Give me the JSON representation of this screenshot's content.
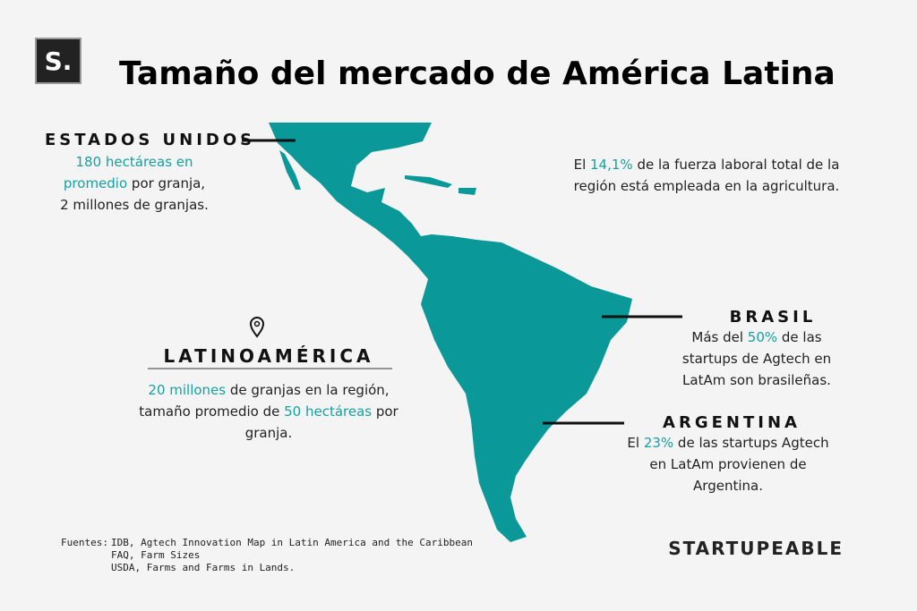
{
  "logo": "S.",
  "title": "Tamaño del mercado de América Latina",
  "usa": {
    "heading": "ESTADOS UNIDOS",
    "lines": [
      [
        "180 hectáreas en"
      ],
      [
        "promedio",
        " por granja,"
      ],
      [
        "2 millones de granjas."
      ]
    ]
  },
  "stat": {
    "lines": [
      [
        "El ",
        "14,1%",
        " de la fuerza laboral total de la"
      ],
      [
        "región está empleada en la agricultura."
      ]
    ]
  },
  "brasil": {
    "heading": "BRASIL",
    "lines": [
      [
        "Más del ",
        "50%",
        " de las"
      ],
      [
        "startups de Agtech en"
      ],
      [
        "LatAm son brasileñas."
      ]
    ]
  },
  "argentina": {
    "heading": "ARGENTINA",
    "lines": [
      [
        "El ",
        "23%",
        " de las startups Agtech"
      ],
      [
        "en LatAm provienen de"
      ],
      [
        "Argentina."
      ]
    ]
  },
  "latam": {
    "heading": "LATINOAMÉRICA",
    "lines": [
      [
        "20 millones",
        " de granjas en la región,"
      ],
      [
        "tamaño promedio de ",
        "50 hectáreas",
        " por"
      ],
      [
        "granja."
      ]
    ]
  },
  "sources": {
    "label": "Fuentes:",
    "items": [
      "IDB, Agtech Innovation Map in Latin America and the Caribbean",
      "FAQ, Farm Sizes",
      "USDA, Farms and Farms in Lands."
    ]
  },
  "brand": "STARTUPEABLE"
}
